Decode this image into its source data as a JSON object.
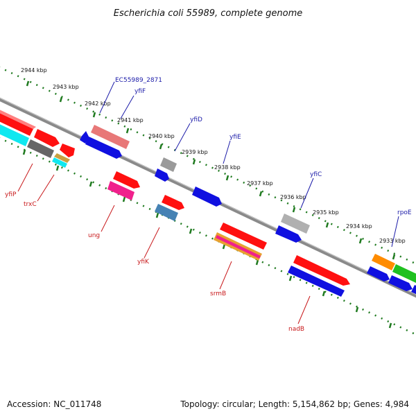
{
  "title": "Escherichia coli 55989, complete genome",
  "scale_labels": [
    "2944 kbp",
    "2943 kbp",
    "2942 kbp",
    "2941 kbp",
    "2940 kbp",
    "2939 kbp",
    "2938 kbp",
    "2937 kbp",
    "2936 kbp",
    "2935 kbp",
    "2934 kbp",
    "2933 kbp"
  ],
  "top_labels": [
    "EC55989_2871",
    "yfiF",
    "yfiD",
    "yfiE",
    "yfiC",
    "rpoE"
  ],
  "bottom_labels": [
    "yfiP",
    "trxC",
    "ung",
    "yfiK",
    "srmB",
    "nadB"
  ],
  "footer": {
    "accession": "Accession: NC_011748",
    "summary": "Topology: circular; Length: 5,154,862 bp; Genes: 4,984"
  },
  "colors": {
    "backbone": "#8a8a8a",
    "scale_dots": "#1f7a1f",
    "top_label": "#1a1aa8",
    "bottom_label": "#c8181a",
    "feature_red": "#ff1010",
    "feature_blue": "#1010e0",
    "feature_grey": "#9a9a9a",
    "feature_pink": "#f0208c",
    "feature_salmon": "#e87878",
    "feature_cyan": "#10e8f0",
    "feature_orange": "#ff8c00",
    "feature_green": "#20c020",
    "feature_steel": "#4682b4"
  }
}
